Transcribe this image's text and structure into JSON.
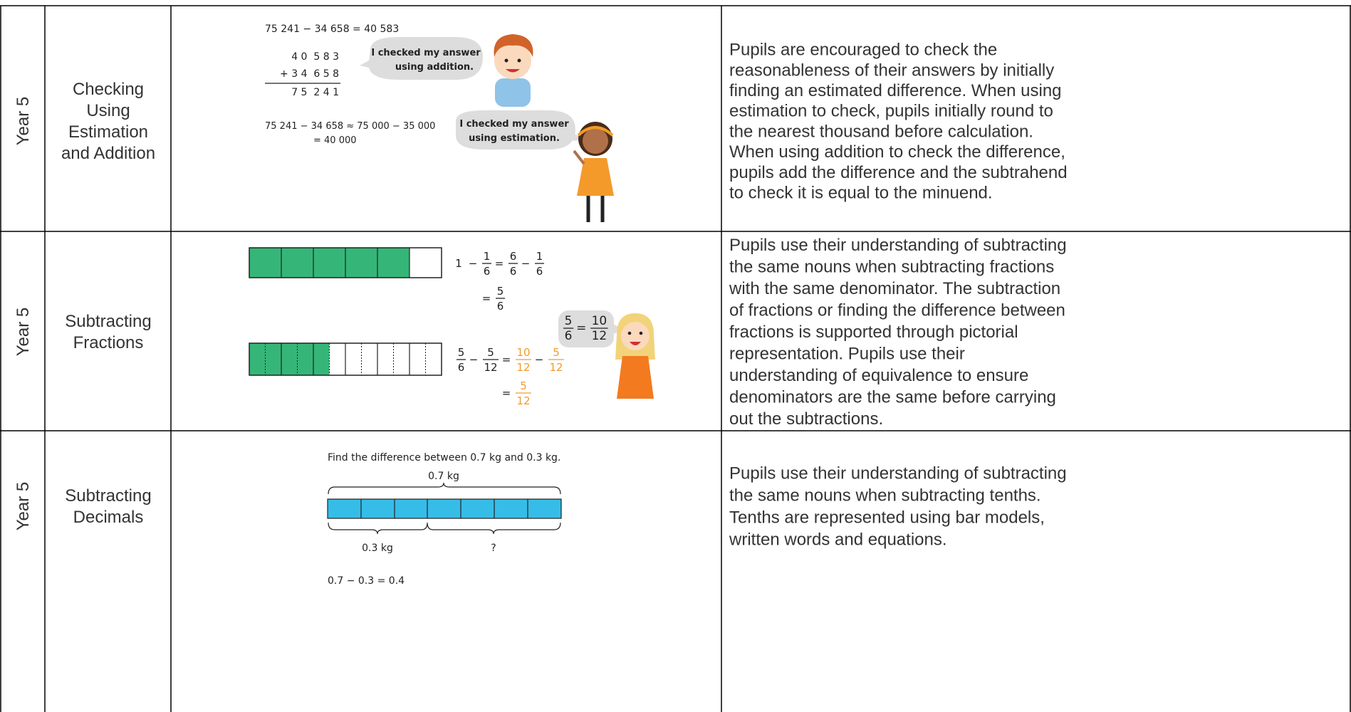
{
  "table": {
    "rows": [
      {
        "year": "Year 5",
        "topic": [
          "Checking",
          "Using",
          "Estimation",
          "and Addition"
        ],
        "figure": {
          "equation": "75 241 − 34 658 = 40 583",
          "column": [
            "4 0  5 8 3",
            "+ 3 4  6 5 8",
            "7 5  2 4 1"
          ],
          "bubble1": [
            "I checked my answer",
            "using addition."
          ],
          "estimate": [
            "75 241 − 34 658 ≈ 75 000 − 35 000",
            "= 40 000"
          ],
          "bubble2": [
            "I checked my answer",
            "using estimation."
          ]
        },
        "description": [
          "Pupils are encouraged to check the",
          "reasonableness of their answers by initially",
          "finding an estimated difference. When using",
          "estimation to check, pupils initially round to",
          "the nearest thousand before calculation.",
          "When using addition to check the difference,",
          "pupils add the difference and the subtrahend",
          "to check it is equal to the minuend."
        ]
      },
      {
        "year": "Year 5",
        "topic": [
          "Subtracting",
          "Fractions"
        ],
        "figure": {
          "eq1": [
            "1",
            "−",
            {
              "num": "1",
              "den": "6"
            },
            "=",
            {
              "num": "6",
              "den": "6"
            },
            "−",
            {
              "num": "1",
              "den": "6"
            }
          ],
          "eq1b": [
            "=",
            {
              "num": "5",
              "den": "6"
            }
          ],
          "eq2": [
            {
              "num": "5",
              "den": "6"
            },
            "−",
            {
              "num": "5",
              "den": "12"
            },
            "=",
            {
              "num": "10",
              "den": "12",
              "color": "#f39a2b"
            },
            "−",
            {
              "num": "5",
              "den": "12",
              "color": "#f39a2b"
            }
          ],
          "eq2b": [
            "=",
            {
              "num": "5",
              "den": "12",
              "color": "#f39a2b"
            }
          ],
          "bubble": [
            {
              "num": "5",
              "den": "6"
            },
            "=",
            {
              "num": "10",
              "den": "12"
            }
          ]
        },
        "description": [
          "Pupils use their understanding of subtracting",
          "the same nouns when subtracting fractions",
          "with the same denominator. The subtraction",
          "of fractions or finding the difference between",
          "fractions is supported through pictorial",
          "representation. Pupils use their",
          "understanding of equivalence to ensure",
          "denominators are the same before carrying",
          "out the subtractions."
        ]
      },
      {
        "year": "Year 5",
        "topic": [
          "Subtracting",
          "Decimals"
        ],
        "figure": {
          "question": "Find the difference between 0.7 kg and 0.3 kg.",
          "whole": "0.7 kg",
          "part": "0.3 kg",
          "unknown": "?",
          "equation": "0.7 − 0.3 = 0.4"
        },
        "description": [
          "Pupils use their understanding of subtracting",
          "the same nouns when subtracting tenths.",
          "Tenths are represented using bar models,",
          "written words and equations."
        ]
      }
    ]
  }
}
